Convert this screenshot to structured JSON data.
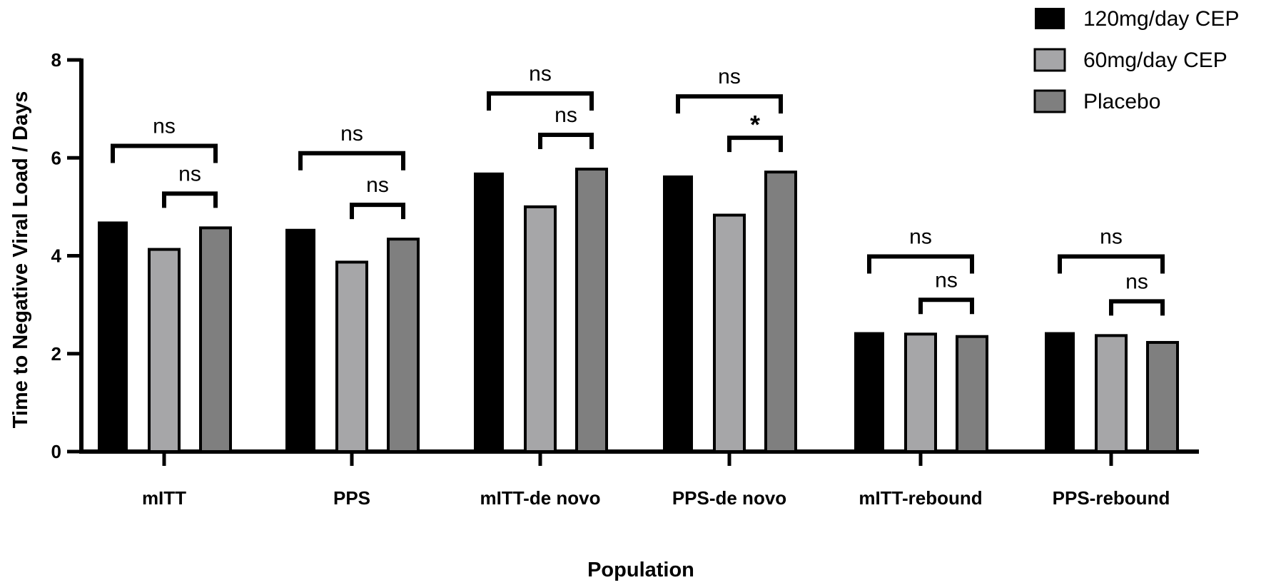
{
  "chart_data": {
    "type": "bar",
    "categories": [
      "mITT",
      "PPS",
      "mITT-de novo",
      "PPS-de novo",
      "mITT-rebound",
      "PPS-rebound"
    ],
    "series": [
      {
        "name": "120mg/day CEP",
        "color": "#000000",
        "values": [
          4.7,
          4.55,
          5.7,
          5.64,
          2.44,
          2.44
        ]
      },
      {
        "name": "60mg/day CEP",
        "color": "#a6a6a8",
        "values": [
          4.13,
          3.87,
          5.0,
          4.83,
          2.4,
          2.37
        ]
      },
      {
        "name": "Placebo",
        "color": "#7f7f7f",
        "values": [
          4.57,
          4.34,
          5.77,
          5.71,
          2.35,
          2.23
        ]
      }
    ],
    "xlabel": "Population",
    "ylabel": "Time to Negative Viral Load / Days",
    "ylim": [
      0,
      8
    ],
    "yticks": [
      "0",
      "2",
      "4",
      "6",
      "8"
    ],
    "legend_position": "top-right",
    "significance": [
      {
        "outer": "ns",
        "inner": "ns"
      },
      {
        "outer": "ns",
        "inner": "ns"
      },
      {
        "outer": "ns",
        "inner": "ns"
      },
      {
        "outer": "ns",
        "inner": "*"
      },
      {
        "outer": "ns",
        "inner": "ns"
      },
      {
        "outer": "ns",
        "inner": "ns"
      }
    ]
  }
}
